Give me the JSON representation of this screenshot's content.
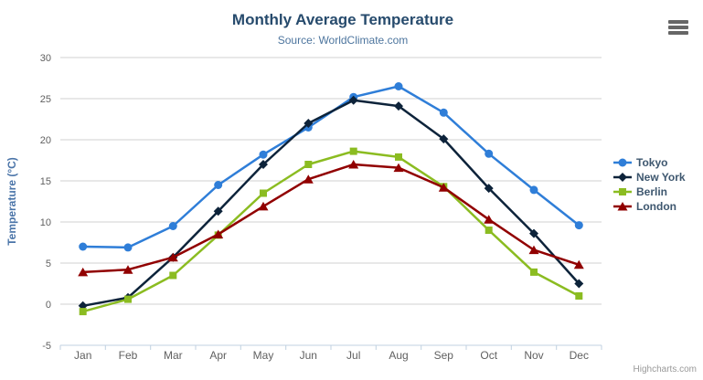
{
  "chart_data": {
    "type": "line",
    "title": "Monthly Average Temperature",
    "subtitle": "Source: WorldClimate.com",
    "categories": [
      "Jan",
      "Feb",
      "Mar",
      "Apr",
      "May",
      "Jun",
      "Jul",
      "Aug",
      "Sep",
      "Oct",
      "Nov",
      "Dec"
    ],
    "series": [
      {
        "name": "Tokyo",
        "color": "#2f7ed8",
        "marker": "circle",
        "values": [
          7.0,
          6.9,
          9.5,
          14.5,
          18.2,
          21.5,
          25.2,
          26.5,
          23.3,
          18.3,
          13.9,
          9.6
        ]
      },
      {
        "name": "New York",
        "color": "#0d233a",
        "marker": "diamond",
        "values": [
          -0.2,
          0.8,
          5.7,
          11.3,
          17.0,
          22.0,
          24.8,
          24.1,
          20.1,
          14.1,
          8.6,
          2.5
        ]
      },
      {
        "name": "Berlin",
        "color": "#8bbc21",
        "marker": "square",
        "values": [
          -0.9,
          0.6,
          3.5,
          8.4,
          13.5,
          17.0,
          18.6,
          17.9,
          14.3,
          9.0,
          3.9,
          1.0
        ]
      },
      {
        "name": "London",
        "color": "#910000",
        "marker": "triangle",
        "values": [
          3.9,
          4.2,
          5.7,
          8.5,
          11.9,
          15.2,
          17.0,
          16.6,
          14.2,
          10.3,
          6.6,
          4.8
        ]
      }
    ],
    "xlabel": "",
    "ylabel": "Temperature (°C)",
    "ylim": [
      -5,
      30
    ],
    "yticks": [
      -5,
      0,
      5,
      10,
      15,
      20,
      25,
      30
    ],
    "grid": true,
    "legend_position": "right"
  },
  "credits": {
    "label": "Highcharts.com"
  },
  "menu": {
    "icon": "hamburger-menu-icon"
  },
  "colors": {
    "grid": "#d0d0d0",
    "axis_line": "#c0d0e0",
    "axis_label": "#606060",
    "axis_title": "#4a74a8",
    "title": "#274b6d",
    "subtitle": "#4d759e",
    "legend_text": "#3e576f",
    "credit": "#999999",
    "menu_icon": "#666666"
  }
}
